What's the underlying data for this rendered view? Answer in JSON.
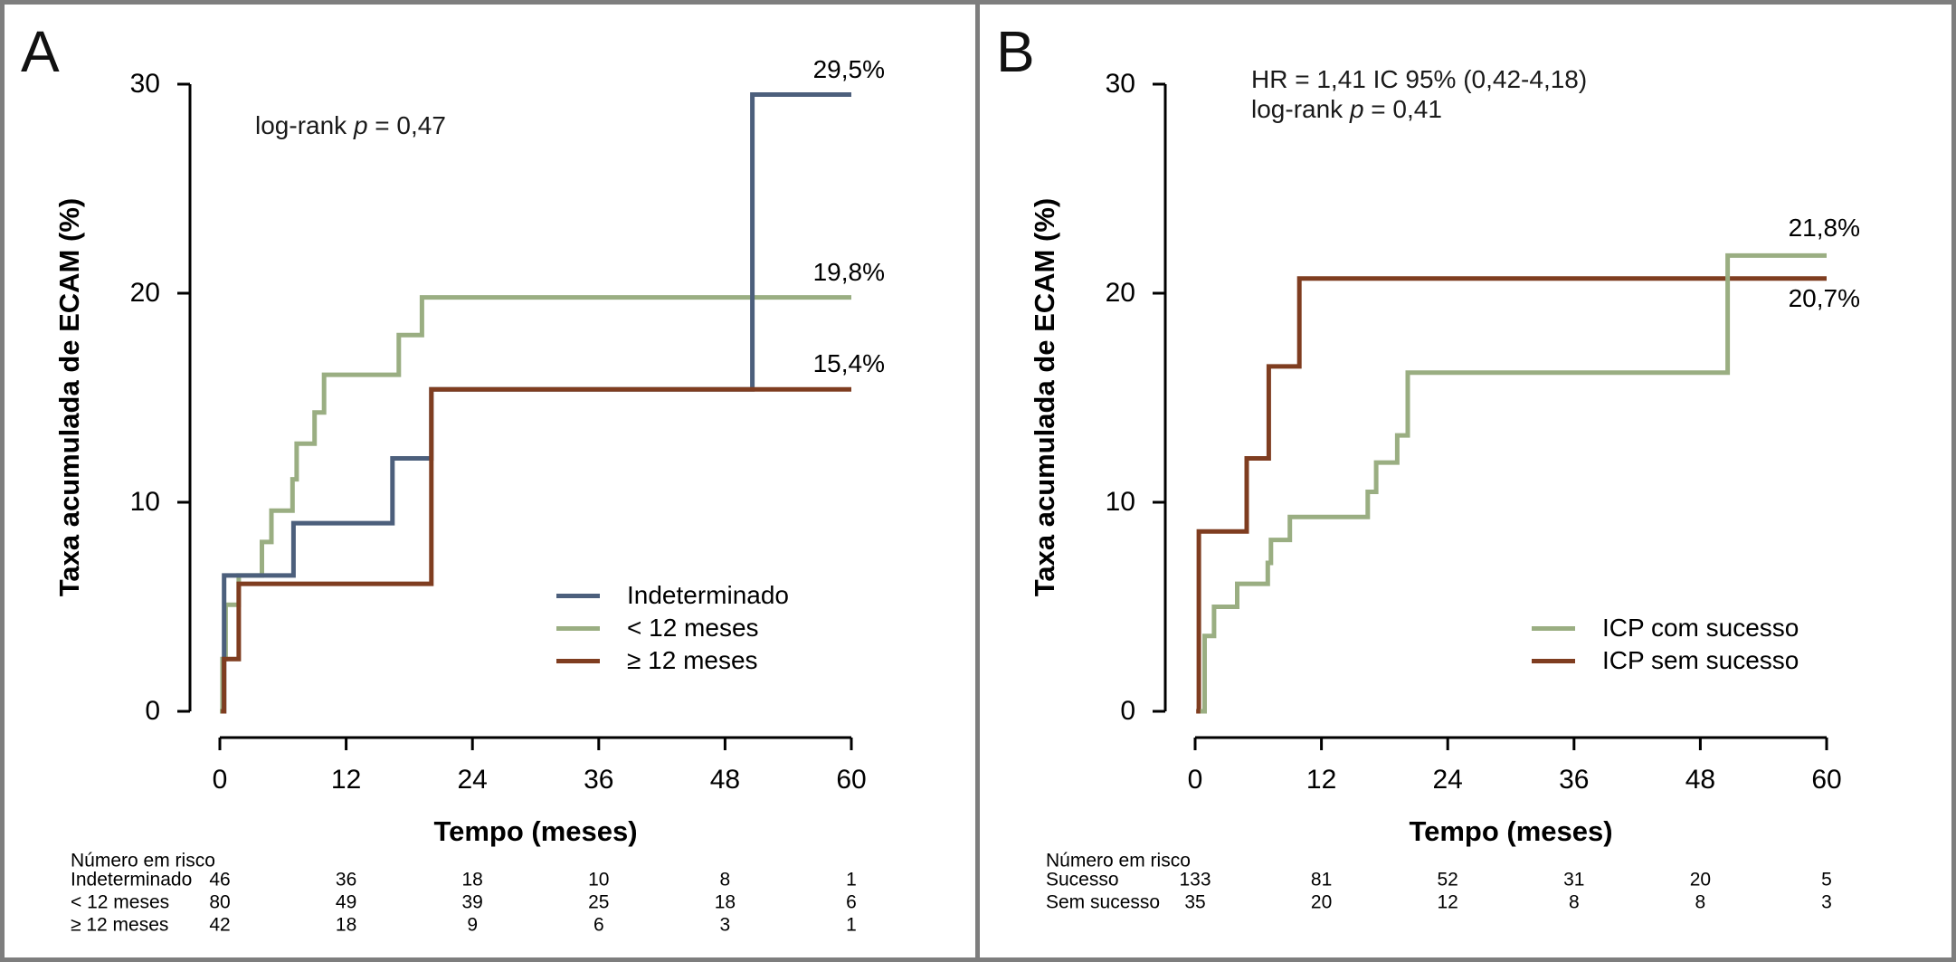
{
  "figure": {
    "frame_color": "#7e7e7e",
    "panel_background": "#ffffff",
    "axis_color": "#000000",
    "accent_colors": {
      "blue": "#4c5f7c",
      "green": "#9aae82",
      "brown": "#7f3d20"
    }
  },
  "chart_data": [
    {
      "type": "line",
      "panel_label": "A",
      "xlabel": "Tempo (meses)",
      "ylabel": "Taxa acumulada de ECAM (%)",
      "xlim": [
        0,
        60
      ],
      "ylim": [
        0,
        30
      ],
      "xticks": [
        0,
        12,
        24,
        36,
        48,
        60
      ],
      "yticks": [
        0,
        10,
        20,
        30
      ],
      "grid": false,
      "legend_position": "inside-right",
      "annotations": [
        [
          {
            "t": "log-rank ",
            "i": 0
          },
          {
            "t": "p",
            "i": 1
          },
          {
            "t": " = 0,47",
            "i": 0
          }
        ]
      ],
      "series": [
        {
          "name": "< 12 meses",
          "color": "#9aae82",
          "end_label": "19,8%",
          "end_label_dy": -28,
          "points": [
            [
              0,
              0
            ],
            [
              0.25,
              2.5
            ],
            [
              0.55,
              5.1
            ],
            [
              1.8,
              6.5
            ],
            [
              4.0,
              8.1
            ],
            [
              4.9,
              9.6
            ],
            [
              6.9,
              11.1
            ],
            [
              7.3,
              12.8
            ],
            [
              9.0,
              14.3
            ],
            [
              9.9,
              16.1
            ],
            [
              17.0,
              18.0
            ],
            [
              19.2,
              19.8
            ],
            [
              60,
              19.8
            ]
          ]
        },
        {
          "name": "Indeterminado",
          "color": "#4c5f7c",
          "end_label": "29,5%",
          "end_label_dy": -28,
          "points": [
            [
              0.2,
              0
            ],
            [
              0.4,
              6.5
            ],
            [
              7,
              9.0
            ],
            [
              16.4,
              12.1
            ],
            [
              20.1,
              15.4
            ],
            [
              50.6,
              29.5
            ],
            [
              60,
              29.5
            ]
          ]
        },
        {
          "name": "≥ 12 meses",
          "color": "#7f3d20",
          "end_label": "15,4%",
          "end_label_dy": -28,
          "points": [
            [
              0.1,
              0
            ],
            [
              0.4,
              2.5
            ],
            [
              1.8,
              6.1
            ],
            [
              20.1,
              15.4
            ],
            [
              60,
              15.4
            ]
          ]
        }
      ],
      "legend_order": [
        "Indeterminado",
        "< 12 meses",
        "≥ 12 meses"
      ],
      "risk_table": {
        "title": "Número em risco",
        "rows": [
          {
            "label": "Indeterminado",
            "values": [
              46,
              36,
              18,
              10,
              8,
              1
            ]
          },
          {
            "label": "< 12 meses",
            "values": [
              80,
              49,
              39,
              25,
              18,
              6
            ]
          },
          {
            "label": "≥ 12 meses",
            "values": [
              42,
              18,
              9,
              6,
              3,
              1
            ]
          }
        ]
      }
    },
    {
      "type": "line",
      "panel_label": "B",
      "xlabel": "Tempo (meses)",
      "ylabel": "Taxa acumulada de ECAM (%)",
      "xlim": [
        0,
        60
      ],
      "ylim": [
        0,
        30
      ],
      "xticks": [
        0,
        12,
        24,
        36,
        48,
        60
      ],
      "yticks": [
        0,
        10,
        20,
        30
      ],
      "grid": false,
      "legend_position": "inside-right",
      "annotations": [
        [
          {
            "t": "HR = 1,41 IC 95% (0,42-4,18)",
            "i": 0
          }
        ],
        [
          {
            "t": "log-rank ",
            "i": 0
          },
          {
            "t": "p",
            "i": 1
          },
          {
            "t": " = 0,41",
            "i": 0
          }
        ]
      ],
      "series": [
        {
          "name": "ICP sem sucesso",
          "color": "#7f3d20",
          "end_label": "20,7%",
          "end_label_dy": 22,
          "points": [
            [
              0.1,
              0
            ],
            [
              0.35,
              8.6
            ],
            [
              4.9,
              12.1
            ],
            [
              7.0,
              16.5
            ],
            [
              9.9,
              20.7
            ],
            [
              60,
              20.7
            ]
          ]
        },
        {
          "name": "ICP com sucesso",
          "color": "#9aae82",
          "end_label": "21,8%",
          "end_label_dy": -30,
          "points": [
            [
              0.5,
              0
            ],
            [
              0.9,
              3.6
            ],
            [
              1.8,
              5.0
            ],
            [
              4.0,
              6.1
            ],
            [
              6.9,
              7.1
            ],
            [
              7.2,
              8.2
            ],
            [
              9.0,
              9.3
            ],
            [
              16.4,
              10.5
            ],
            [
              17.2,
              11.9
            ],
            [
              19.2,
              13.2
            ],
            [
              20.2,
              16.2
            ],
            [
              50.6,
              21.8
            ],
            [
              60,
              21.8
            ]
          ]
        }
      ],
      "legend_order": [
        "ICP com sucesso",
        "ICP sem sucesso"
      ],
      "risk_table": {
        "title": "Número em risco",
        "rows": [
          {
            "label": "Sucesso",
            "values": [
              133,
              81,
              52,
              31,
              20,
              5
            ]
          },
          {
            "label": "Sem sucesso",
            "values": [
              35,
              20,
              12,
              8,
              8,
              3
            ]
          }
        ]
      }
    }
  ]
}
